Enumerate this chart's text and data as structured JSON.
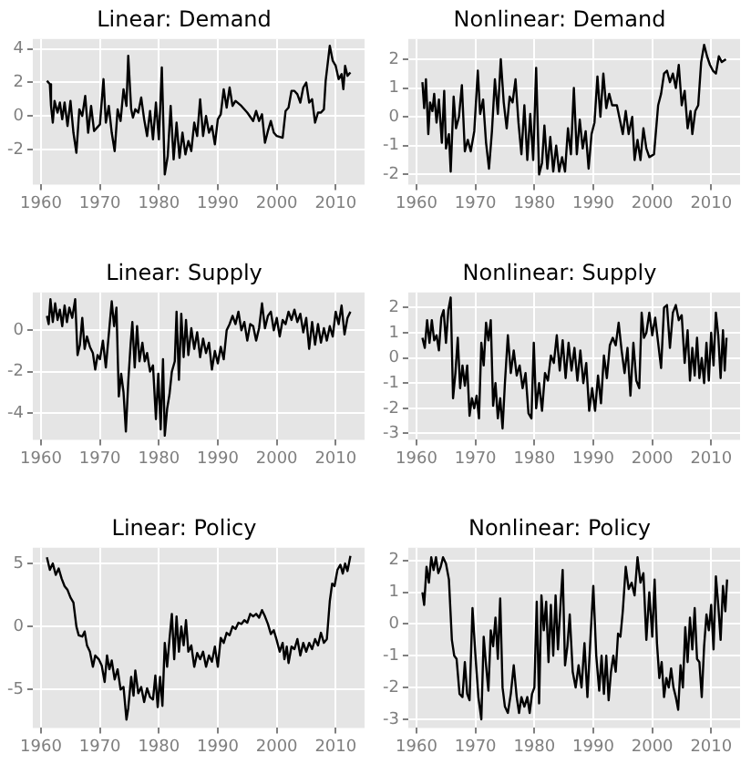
{
  "chart_data": [
    {
      "type": "line",
      "title": "Linear: Demand",
      "color": "#000000",
      "grid": true,
      "xlim": [
        1958.6,
        2014.9
      ],
      "xticks": [
        1960,
        1970,
        1980,
        1990,
        2000,
        2010
      ],
      "ylim": [
        -4.1,
        4.6
      ],
      "yticks": [
        -2,
        0,
        2,
        4
      ],
      "x": [
        1961.0,
        1961.5,
        1961.7,
        1962.0,
        1962.3,
        1962.8,
        1963.2,
        1963.6,
        1964,
        1964.5,
        1965,
        1965.5,
        1966,
        1966.5,
        1967,
        1967.5,
        1968,
        1968.5,
        1969,
        1970,
        1970.6,
        1971,
        1971.5,
        1972,
        1972.5,
        1973,
        1973.5,
        1974,
        1974.5,
        1974.8,
        1975.3,
        1975.6,
        1976,
        1976.5,
        1977,
        1977.5,
        1978,
        1978.5,
        1979,
        1979.5,
        1980,
        1980.5,
        1981,
        1981.5,
        1982,
        1982.5,
        1983,
        1983.5,
        1984,
        1984.5,
        1985,
        1985.5,
        1986,
        1986.5,
        1987,
        1987.5,
        1988,
        1988.5,
        1989,
        1989.5,
        1990,
        1990.5,
        1991,
        1991.5,
        1992,
        1992.5,
        1993,
        1994,
        1995,
        1996,
        1996.5,
        1997,
        1997.5,
        1998,
        1998.5,
        1999,
        1999.5,
        2000,
        2001,
        2001.5,
        2002,
        2002.5,
        2003,
        2003.5,
        2004,
        2004.5,
        2005,
        2005.5,
        2006,
        2006.5,
        2007,
        2007.5,
        2008,
        2008.3,
        2009,
        2009.5,
        2010,
        2010.5,
        2011,
        2011.3,
        2011.6,
        2012,
        2012.5
      ],
      "values": [
        2.1,
        1.9,
        0.6,
        -0.4,
        0.9,
        0.2,
        0.8,
        -0.2,
        0.8,
        -0.6,
        0.9,
        -1.0,
        -2.2,
        0.4,
        0.0,
        1.2,
        -1.0,
        0.6,
        -0.9,
        -0.5,
        2.2,
        -0.4,
        0.6,
        -1.0,
        -2.1,
        0.4,
        -0.3,
        1.6,
        0.6,
        3.6,
        0.4,
        -0.1,
        0.4,
        0.2,
        1.1,
        -0.2,
        -1.2,
        0.3,
        -1.4,
        0.8,
        -1.4,
        2.9,
        -3.5,
        -2.4,
        0.6,
        -2.6,
        -0.4,
        -2.5,
        -1.0,
        -2.3,
        -1.5,
        -2.1,
        -0.4,
        -1.2,
        1.0,
        -1.2,
        0.0,
        -1.0,
        -0.6,
        -1.7,
        -0.2,
        0.1,
        1.6,
        0.5,
        1.7,
        0.6,
        0.9,
        0.6,
        0.2,
        -0.3,
        0.3,
        -0.3,
        0.1,
        -1.6,
        -0.9,
        -0.3,
        -1.0,
        -1.2,
        -1.3,
        0.3,
        0.5,
        1.5,
        1.5,
        1.3,
        0.8,
        1.7,
        2.0,
        0.8,
        1.0,
        -0.4,
        0.2,
        0.2,
        0.4,
        2.1,
        4.2,
        3.3,
        3.0,
        2.2,
        2.5,
        1.6,
        3.0,
        2.4,
        2.6
      ]
    },
    {
      "type": "line",
      "title": "Nonlinear: Demand",
      "color": "#000000",
      "grid": true,
      "xlim": [
        1958.6,
        2014.9
      ],
      "xticks": [
        1960,
        1970,
        1980,
        1990,
        2000,
        2010
      ],
      "ylim": [
        -2.35,
        2.7
      ],
      "yticks": [
        -2,
        -1,
        0,
        1,
        2
      ],
      "x": [
        1961,
        1961.3,
        1961.6,
        1962,
        1962.3,
        1962.7,
        1963,
        1963.4,
        1963.8,
        1964.3,
        1964.7,
        1965,
        1965.5,
        1965.8,
        1966.3,
        1966.7,
        1967.2,
        1967.7,
        1968.2,
        1968.7,
        1969.2,
        1969.8,
        1970.4,
        1970.8,
        1971.3,
        1971.8,
        1972.3,
        1972.8,
        1973.3,
        1973.8,
        1974.3,
        1974.8,
        1975.3,
        1975.8,
        1976.3,
        1976.8,
        1977.3,
        1977.8,
        1978.3,
        1978.8,
        1979.3,
        1979.8,
        1980.3,
        1980.8,
        1981.3,
        1981.7,
        1982.2,
        1982.7,
        1983.2,
        1983.7,
        1984.2,
        1984.7,
        1985.2,
        1985.7,
        1986.2,
        1986.7,
        1987.2,
        1987.7,
        1988.2,
        1988.7,
        1989.2,
        1989.7,
        1990.2,
        1990.7,
        1991.2,
        1991.7,
        1992.2,
        1992.7,
        1993.2,
        1994,
        1995,
        1995.5,
        1996,
        1996.6,
        1997,
        1997.5,
        1998,
        1998.5,
        1999,
        1999.5,
        2000.3,
        2001,
        2001.5,
        2002,
        2002.5,
        2003,
        2003.5,
        2004,
        2004.5,
        2005,
        2005.5,
        2006,
        2006.5,
        2006.8,
        2007.3,
        2007.8,
        2008.3,
        2008.8,
        2009.3,
        2009.8,
        2010.3,
        2010.8,
        2011.3,
        2011.8,
        2012.5
      ],
      "values": [
        1.2,
        0.3,
        1.3,
        -0.6,
        0.5,
        0.2,
        0.8,
        -0.2,
        0.6,
        -0.9,
        0.9,
        -1.1,
        -0.6,
        -1.9,
        0.7,
        -0.4,
        0.0,
        1.1,
        -1.2,
        -0.8,
        -1.2,
        -0.5,
        1.6,
        0.1,
        0.6,
        -0.9,
        -1.8,
        -0.5,
        1.3,
        0.1,
        2.0,
        0.5,
        -0.4,
        0.7,
        0.5,
        1.3,
        -0.2,
        -1.3,
        0.4,
        -1.5,
        0.1,
        -1.5,
        1.7,
        -2.0,
        -1.6,
        -0.3,
        -1.8,
        -0.7,
        -1.9,
        -1.0,
        -1.9,
        -1.4,
        -1.9,
        -0.4,
        -1.3,
        1.0,
        -1.3,
        -0.1,
        -1.1,
        -0.5,
        -1.8,
        -0.6,
        -0.2,
        1.4,
        0.0,
        1.5,
        0.3,
        0.8,
        0.4,
        0.4,
        -0.6,
        0.2,
        -0.6,
        0.0,
        -1.5,
        -0.8,
        -1.5,
        -0.4,
        -1.1,
        -1.4,
        -1.3,
        0.4,
        0.8,
        1.5,
        1.6,
        1.2,
        1.5,
        1.0,
        1.8,
        0.4,
        0.9,
        -0.4,
        0.2,
        -0.6,
        0.2,
        0.4,
        1.9,
        2.5,
        2.1,
        1.8,
        1.6,
        1.5,
        2.1,
        1.9,
        2.0
      ]
    },
    {
      "type": "line",
      "title": "Linear: Supply",
      "color": "#000000",
      "grid": true,
      "xlim": [
        1958.6,
        2014.9
      ],
      "xticks": [
        1960,
        1970,
        1980,
        1990,
        2000,
        2010
      ],
      "ylim": [
        -5.3,
        1.83
      ],
      "yticks": [
        -4,
        -2,
        0
      ],
      "x": [
        1961,
        1961.3,
        1961.6,
        1962,
        1962.4,
        1962.8,
        1963.2,
        1963.6,
        1964,
        1964.4,
        1964.8,
        1965.3,
        1965.8,
        1966.2,
        1966.6,
        1967,
        1967.4,
        1967.8,
        1968.3,
        1968.8,
        1969.2,
        1969.6,
        1970,
        1970.5,
        1971,
        1971.5,
        1972,
        1972.4,
        1972.8,
        1973.2,
        1973.6,
        1974,
        1974.4,
        1974.8,
        1975.2,
        1975.5,
        1975.9,
        1976.3,
        1976.7,
        1977.2,
        1977.6,
        1978,
        1978.5,
        1979,
        1979.5,
        1979.9,
        1980.3,
        1980.7,
        1981,
        1981.4,
        1981.8,
        1982.2,
        1982.7,
        1983,
        1983.4,
        1983.8,
        1984.2,
        1984.6,
        1985,
        1985.5,
        1986,
        1986.5,
        1987,
        1987.5,
        1988,
        1988.5,
        1989,
        1989.5,
        1990,
        1990.5,
        1991,
        1991.5,
        1992,
        1992.5,
        1993,
        1993.5,
        1994,
        1994.5,
        1995,
        1995.5,
        1996,
        1996.5,
        1997,
        1997.5,
        1998,
        1998.5,
        1999,
        1999.5,
        2000,
        2000.5,
        2001,
        2001.5,
        2002,
        2002.5,
        2003,
        2003.5,
        2004,
        2004.5,
        2005,
        2005.5,
        2006,
        2006.5,
        2007,
        2007.5,
        2008,
        2008.5,
        2009,
        2009.5,
        2010,
        2010.5,
        2011,
        2011.5,
        2012,
        2012.5
      ],
      "values": [
        0.7,
        0.3,
        1.5,
        0.4,
        1.3,
        0.5,
        1.0,
        0.2,
        1.2,
        0.4,
        1.1,
        0.6,
        1.5,
        -1.2,
        -0.7,
        0.6,
        -0.9,
        -0.3,
        -0.8,
        -1.1,
        -1.9,
        -1.2,
        -1.4,
        -0.5,
        -1.8,
        -0.2,
        1.4,
        0.2,
        1.1,
        -3.2,
        -2.1,
        -3.0,
        -4.9,
        -2.5,
        -0.7,
        0.4,
        -1.8,
        0.2,
        -1.5,
        -0.6,
        -1.5,
        -1.1,
        -2.0,
        -1.7,
        -4.3,
        -2.1,
        -4.8,
        -1.4,
        -5.1,
        -3.8,
        -3.1,
        -2.0,
        -1.5,
        0.9,
        -2.4,
        0.8,
        -1.3,
        0.5,
        -1.2,
        0.1,
        -0.9,
        -0.1,
        -1.3,
        -0.4,
        -1.1,
        -0.6,
        -1.9,
        -1.0,
        -1.6,
        -0.8,
        -1.4,
        0.0,
        0.3,
        0.7,
        0.3,
        0.9,
        0.0,
        0.4,
        -0.5,
        0.3,
        0.2,
        -0.5,
        0.1,
        1.3,
        0.1,
        0.7,
        0.9,
        0.0,
        0.6,
        -0.3,
        0.5,
        0.3,
        0.9,
        0.5,
        1.0,
        0.4,
        0.8,
        -0.1,
        0.6,
        -0.9,
        0.4,
        -0.7,
        0.3,
        -0.6,
        0.1,
        -0.5,
        0.2,
        -0.3,
        0.9,
        0.3,
        1.2,
        -0.2,
        0.6,
        0.9
      ]
    },
    {
      "type": "line",
      "title": "Nonlinear: Supply",
      "color": "#000000",
      "grid": true,
      "xlim": [
        1958.6,
        2014.9
      ],
      "xticks": [
        1960,
        1970,
        1980,
        1990,
        2000,
        2010
      ],
      "ylim": [
        -3.25,
        2.6
      ],
      "yticks": [
        -3,
        -2,
        -1,
        0,
        1,
        2
      ],
      "x": [
        1961,
        1961.4,
        1961.8,
        1962.2,
        1962.6,
        1963,
        1963.4,
        1963.8,
        1964.2,
        1964.6,
        1965,
        1965.4,
        1965.8,
        1966.2,
        1966.6,
        1967,
        1967.4,
        1967.8,
        1968.2,
        1968.6,
        1969,
        1969.4,
        1969.8,
        1970.2,
        1970.6,
        1971,
        1971.4,
        1971.8,
        1972.2,
        1972.6,
        1973,
        1973.4,
        1973.8,
        1974.2,
        1974.6,
        1975,
        1975.5,
        1976,
        1976.5,
        1977,
        1977.5,
        1978,
        1978.5,
        1979,
        1979.5,
        1979.9,
        1980.3,
        1980.8,
        1981.3,
        1981.8,
        1982.3,
        1982.8,
        1983.3,
        1983.8,
        1984.3,
        1984.8,
        1985.3,
        1985.8,
        1986.3,
        1986.8,
        1987.3,
        1987.8,
        1988.3,
        1988.8,
        1989.3,
        1989.8,
        1990.3,
        1990.8,
        1991.3,
        1991.8,
        1992.3,
        1992.8,
        1993.3,
        1993.8,
        1994.3,
        1994.8,
        1995.3,
        1995.8,
        1996.3,
        1996.8,
        1997.3,
        1997.8,
        1998.2,
        1998.6,
        1999,
        1999.5,
        2000,
        2000.5,
        2001,
        2001.5,
        2002,
        2002.5,
        2003,
        2003.5,
        2004,
        2004.5,
        2005,
        2005.5,
        2006,
        2006.4,
        2006.8,
        2007.2,
        2007.6,
        2008,
        2008.4,
        2008.8,
        2009.2,
        2009.6,
        2010,
        2010.4,
        2010.8,
        2011.2,
        2011.6,
        2012,
        2012.3,
        2012.6
      ],
      "values": [
        0.8,
        0.4,
        1.5,
        0.6,
        1.5,
        0.7,
        0.9,
        0.3,
        1.6,
        1.9,
        0.6,
        1.9,
        2.4,
        -1.6,
        -0.6,
        0.8,
        -1.2,
        -0.3,
        -1.1,
        -0.3,
        -2.3,
        -1.6,
        -2.0,
        -1.5,
        -2.4,
        0.6,
        -0.3,
        1.4,
        0.7,
        1.5,
        -1.9,
        -1.0,
        -2.4,
        -1.6,
        -2.8,
        -1.0,
        0.9,
        -0.6,
        0.3,
        -0.7,
        -0.3,
        -1.2,
        -0.6,
        -2.2,
        -2.4,
        0.6,
        -2.0,
        -1.0,
        -2.1,
        -0.6,
        -0.9,
        0.1,
        -0.2,
        0.9,
        -0.5,
        0.7,
        -0.8,
        0.6,
        -0.5,
        0.4,
        -0.9,
        0.3,
        -1.0,
        -0.2,
        -2.1,
        -1.2,
        -2.1,
        -0.7,
        -1.8,
        0.1,
        -0.8,
        0.5,
        0.8,
        0.5,
        1.4,
        0.3,
        -0.6,
        0.4,
        -1.5,
        0.6,
        -0.9,
        -1.2,
        1.8,
        0.8,
        1.0,
        1.8,
        0.9,
        1.6,
        0.6,
        -0.4,
        2.0,
        2.1,
        0.4,
        1.8,
        2.1,
        1.5,
        1.7,
        -0.2,
        1.1,
        -0.9,
        0.4,
        -0.7,
        0.8,
        -0.8,
        0.0,
        -1.0,
        0.6,
        -0.9,
        1.0,
        -0.3,
        1.8,
        0.9,
        -0.8,
        1.1,
        -0.5,
        0.8
      ]
    },
    {
      "type": "line",
      "title": "Linear: Policy",
      "color": "#000000",
      "grid": true,
      "xlim": [
        1958.6,
        2014.9
      ],
      "xticks": [
        1960,
        1970,
        1980,
        1990,
        2000,
        2010
      ],
      "ylim": [
        -8.05,
        6.25
      ],
      "yticks": [
        -5,
        0,
        5
      ],
      "x": [
        1961,
        1961.5,
        1962,
        1962.5,
        1963,
        1963.5,
        1964,
        1964.5,
        1965,
        1965.5,
        1966,
        1966.4,
        1967,
        1967.4,
        1967.8,
        1968.3,
        1968.8,
        1969.2,
        1969.8,
        1970.3,
        1970.8,
        1971.2,
        1971.6,
        1972,
        1972.5,
        1973,
        1973.5,
        1974,
        1974.5,
        1974.8,
        1975.3,
        1975.7,
        1976,
        1976.5,
        1977,
        1977.5,
        1978,
        1978.5,
        1979,
        1979.4,
        1979.8,
        1980.2,
        1980.6,
        1981,
        1981.4,
        1981.8,
        1982.2,
        1982.6,
        1983,
        1983.4,
        1983.8,
        1984.2,
        1984.6,
        1985,
        1985.5,
        1986,
        1986.5,
        1987,
        1987.5,
        1988,
        1988.5,
        1989,
        1989.5,
        1990,
        1990.5,
        1991,
        1991.5,
        1992,
        1992.5,
        1993,
        1993.5,
        1994,
        1994.5,
        1995,
        1995.5,
        1996,
        1996.5,
        1997,
        1997.5,
        1998,
        1998.5,
        1999,
        1999.5,
        2000,
        2000.5,
        2001,
        2001.3,
        2001.7,
        2002,
        2002.5,
        2003,
        2003.5,
        2004,
        2004.5,
        2005,
        2005.5,
        2006,
        2006.5,
        2007,
        2007.5,
        2008,
        2008.5,
        2009,
        2009.4,
        2009.8,
        2010.3,
        2010.8,
        2011.2,
        2011.6,
        2012,
        2012.5
      ],
      "values": [
        5.5,
        4.5,
        5.0,
        4.1,
        4.6,
        3.8,
        3.2,
        2.9,
        2.3,
        1.9,
        0.0,
        -0.7,
        -0.8,
        -0.4,
        -1.5,
        -2.0,
        -3.2,
        -2.3,
        -2.6,
        -3.1,
        -4.4,
        -2.3,
        -3.4,
        -2.7,
        -4.2,
        -3.4,
        -5.0,
        -4.8,
        -7.4,
        -6.5,
        -4.0,
        -5.5,
        -3.5,
        -5.3,
        -4.8,
        -6.0,
        -4.9,
        -5.6,
        -5.8,
        -3.9,
        -6.4,
        -4.0,
        -6.3,
        -1.3,
        -3.2,
        -1.0,
        1.0,
        -2.6,
        0.8,
        -2.0,
        0.0,
        -1.5,
        0.5,
        -2.0,
        -1.5,
        -3.2,
        -2.1,
        -2.6,
        -2.0,
        -3.2,
        -2.3,
        -2.8,
        -1.6,
        -3.2,
        -0.9,
        -1.3,
        -0.5,
        -0.7,
        0.0,
        -0.2,
        0.3,
        0.2,
        0.5,
        0.3,
        1.0,
        0.8,
        1.0,
        0.7,
        1.3,
        0.8,
        0.2,
        -0.6,
        -0.3,
        -1.1,
        -2.0,
        -1.3,
        -2.6,
        -1.6,
        -2.9,
        -1.6,
        -1.8,
        -1.0,
        -2.3,
        -1.3,
        -2.0,
        -1.3,
        -1.8,
        -1.0,
        -1.5,
        -0.5,
        -1.3,
        -1.0,
        2.0,
        3.4,
        3.2,
        4.5,
        4.9,
        4.2,
        5.0,
        4.4,
        5.6
      ]
    },
    {
      "type": "line",
      "title": "Nonlinear: Policy",
      "color": "#000000",
      "grid": true,
      "xlim": [
        1958.6,
        2014.9
      ],
      "xticks": [
        1960,
        1970,
        1980,
        1990,
        2000,
        2010
      ],
      "ylim": [
        -3.27,
        2.4
      ],
      "yticks": [
        -3,
        -2,
        -1,
        0,
        1,
        2
      ],
      "x": [
        1961,
        1961.3,
        1961.7,
        1962.1,
        1962.5,
        1962.9,
        1963.3,
        1963.7,
        1964.1,
        1964.5,
        1965,
        1965.5,
        1966,
        1966.4,
        1966.8,
        1967.3,
        1967.8,
        1968.2,
        1968.6,
        1969,
        1969.5,
        1970,
        1970.5,
        1971,
        1971.4,
        1971.8,
        1972.2,
        1972.6,
        1973,
        1973.4,
        1973.8,
        1974.2,
        1974.6,
        1975,
        1975.5,
        1976,
        1976.5,
        1977,
        1977.4,
        1977.8,
        1978.3,
        1978.8,
        1979.2,
        1979.6,
        1980,
        1980.4,
        1980.8,
        1981.2,
        1981.6,
        1982,
        1982.4,
        1982.8,
        1983.2,
        1983.6,
        1984,
        1984.4,
        1984.8,
        1985.2,
        1985.6,
        1986,
        1986.5,
        1987,
        1987.5,
        1988,
        1988.5,
        1989,
        1989.5,
        1990,
        1990.5,
        1991,
        1991.4,
        1991.8,
        1992.2,
        1992.6,
        1993,
        1993.4,
        1993.8,
        1994.2,
        1994.6,
        1995,
        1995.5,
        1996,
        1996.5,
        1997,
        1997.5,
        1998,
        1998.5,
        1999,
        1999.5,
        2000,
        2000.4,
        2000.8,
        2001.2,
        2001.6,
        2002,
        2002.4,
        2002.8,
        2003.2,
        2003.6,
        2004,
        2004.4,
        2004.8,
        2005.2,
        2005.6,
        2006,
        2006.4,
        2006.8,
        2007.2,
        2007.6,
        2008,
        2008.4,
        2008.8,
        2009.2,
        2009.6,
        2010,
        2010.4,
        2010.8,
        2011.2,
        2011.6,
        2012,
        2012.4,
        2012.7
      ],
      "values": [
        1.0,
        0.6,
        1.8,
        1.3,
        2.1,
        1.7,
        2.1,
        1.6,
        1.8,
        2.1,
        1.9,
        1.4,
        -0.5,
        -1.0,
        -1.1,
        -2.2,
        -2.3,
        -1.2,
        -2.2,
        -2.4,
        0.5,
        -1.0,
        -2.3,
        -3.0,
        -0.4,
        -1.3,
        -2.1,
        -0.2,
        -0.7,
        0.2,
        -1.1,
        0.8,
        -2.0,
        -2.6,
        -2.8,
        -2.2,
        -1.3,
        -2.3,
        -2.8,
        -2.3,
        -2.6,
        -2.3,
        -2.8,
        -2.2,
        -2.0,
        0.7,
        -2.5,
        0.9,
        -0.2,
        0.7,
        -1.2,
        0.6,
        -1.0,
        0.9,
        -0.8,
        0.5,
        1.7,
        -1.3,
        -0.7,
        0.3,
        -1.5,
        -2.0,
        -1.3,
        -2.0,
        -0.6,
        -2.3,
        -0.5,
        1.2,
        -1.0,
        -2.1,
        -1.0,
        -2.2,
        -1.0,
        -2.4,
        -1.5,
        -1.0,
        -1.5,
        -0.3,
        -0.4,
        0.4,
        1.8,
        1.1,
        1.3,
        0.9,
        2.1,
        1.3,
        1.6,
        -0.5,
        1.0,
        -0.4,
        1.4,
        -0.6,
        -1.7,
        -1.2,
        -2.3,
        -1.7,
        -2.0,
        -1.4,
        -2.0,
        -2.3,
        -2.7,
        -1.3,
        -2.0,
        -0.1,
        -1.2,
        0.2,
        -0.8,
        0.5,
        -1.1,
        -1.2,
        -2.3,
        -0.7,
        0.3,
        -0.2,
        0.6,
        -0.8,
        1.5,
        0.6,
        -0.5,
        1.2,
        0.4,
        1.4
      ]
    }
  ]
}
